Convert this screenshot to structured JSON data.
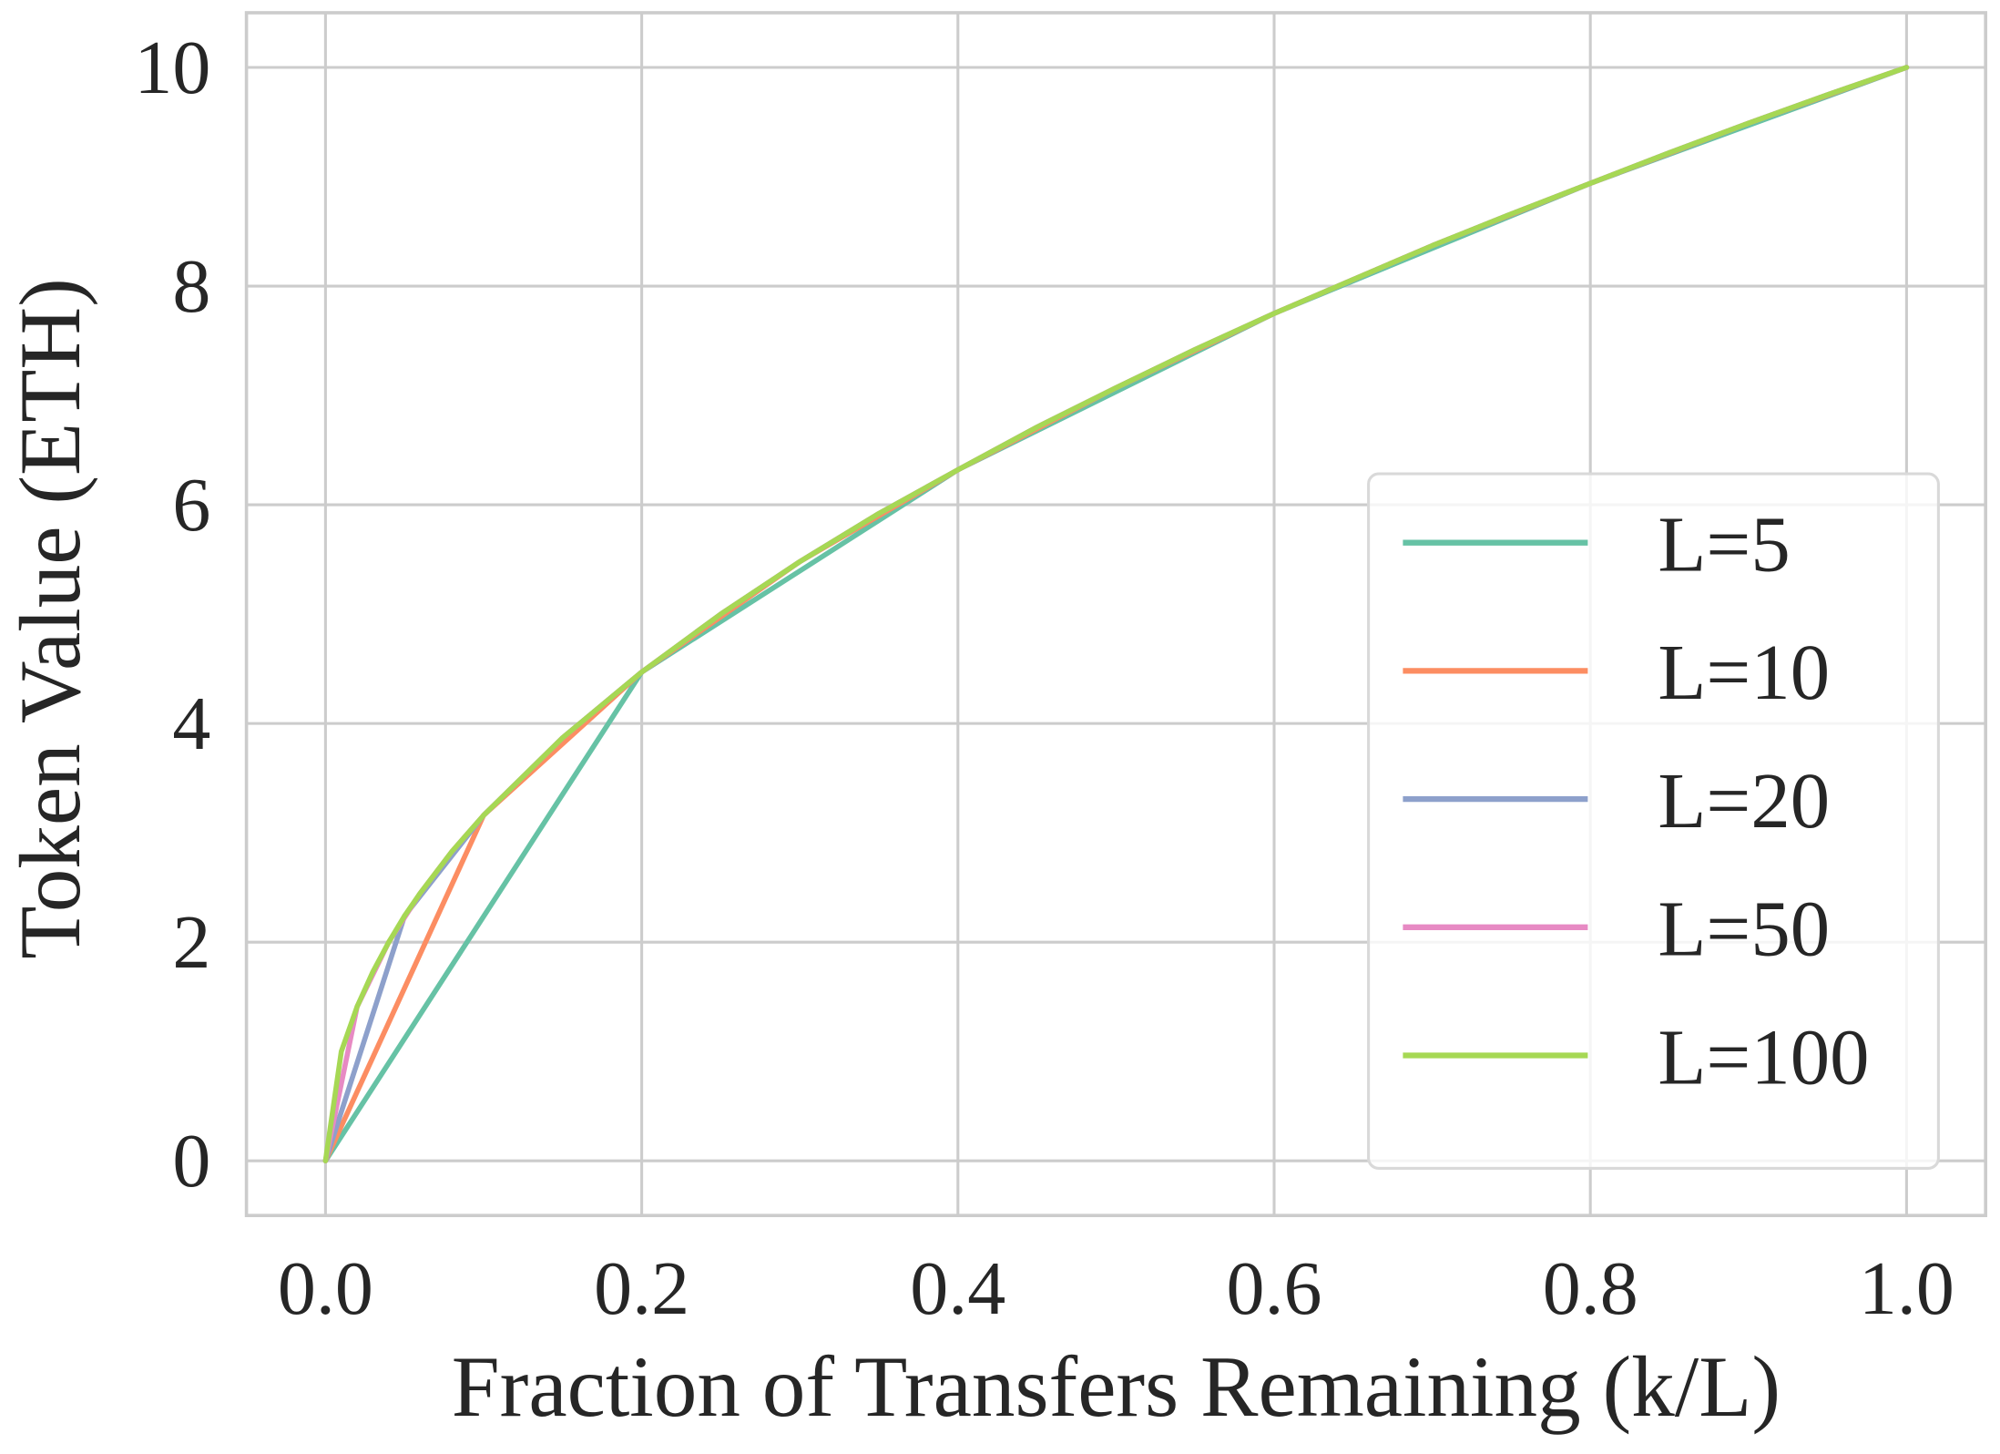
{
  "chart_data": {
    "type": "line",
    "x_label": "Fraction of Transfers Remaining (k/L)",
    "y_label": "Token Value (ETH)",
    "xlim": [
      -0.05,
      1.05
    ],
    "ylim": [
      -0.5,
      10.5
    ],
    "xticks": [
      {
        "value": 0,
        "label": "0.0"
      },
      0.2,
      0.4,
      0.6,
      0.8,
      {
        "value": 1,
        "label": "1.0"
      }
    ],
    "yticks": [
      0,
      2,
      4,
      6,
      8,
      10
    ],
    "grid": true,
    "legend": "lower right",
    "series": [
      {
        "name": "L=5",
        "color": "#66c2a5",
        "x": [
          0,
          0.2,
          0.4,
          0.6,
          0.8,
          1
        ],
        "values": [
          0,
          4.47,
          6.32,
          7.75,
          8.94,
          10
        ]
      },
      {
        "name": "L=10",
        "color": "#fc8d62",
        "x": [
          0,
          0.1,
          0.2,
          0.3,
          0.4,
          0.5,
          0.6,
          0.7,
          0.8,
          0.9,
          1
        ],
        "values": [
          0,
          3.16,
          4.47,
          5.48,
          6.32,
          7.07,
          7.75,
          8.37,
          8.94,
          9.49,
          10
        ]
      },
      {
        "name": "L=20",
        "color": "#8da0cb",
        "x": [
          0,
          0.05,
          0.1,
          0.15,
          0.2,
          0.25,
          0.3,
          0.35,
          0.4,
          0.45,
          0.5,
          0.55,
          0.6,
          0.65,
          0.7,
          0.75,
          0.8,
          0.85,
          0.9,
          0.95,
          1
        ],
        "values": [
          0,
          2.24,
          3.16,
          3.87,
          4.47,
          5,
          5.48,
          5.92,
          6.32,
          6.71,
          7.07,
          7.42,
          7.75,
          8.06,
          8.37,
          8.66,
          8.94,
          9.22,
          9.49,
          9.75,
          10
        ]
      },
      {
        "name": "L=50",
        "color": "#e78ac3",
        "x": [
          0,
          0.02,
          0.04,
          0.06,
          0.08,
          0.1,
          0.15,
          0.2,
          0.25,
          0.3,
          0.35,
          0.4,
          0.45,
          0.5,
          0.55,
          0.6,
          0.65,
          0.7,
          0.75,
          0.8,
          0.85,
          0.9,
          0.95,
          1
        ],
        "values": [
          0,
          1.41,
          2,
          2.45,
          2.83,
          3.16,
          3.87,
          4.47,
          5,
          5.48,
          5.92,
          6.32,
          6.71,
          7.07,
          7.42,
          7.75,
          8.06,
          8.37,
          8.66,
          8.94,
          9.22,
          9.49,
          9.75,
          10
        ]
      },
      {
        "name": "L=100",
        "color": "#a6d854",
        "x": [
          0,
          0.01,
          0.02,
          0.03,
          0.04,
          0.05,
          0.06,
          0.08,
          0.1,
          0.15,
          0.2,
          0.25,
          0.3,
          0.35,
          0.4,
          0.45,
          0.5,
          0.55,
          0.6,
          0.65,
          0.7,
          0.75,
          0.8,
          0.85,
          0.9,
          0.95,
          1
        ],
        "values": [
          0,
          1,
          1.41,
          1.73,
          2,
          2.24,
          2.45,
          2.83,
          3.16,
          3.87,
          4.47,
          5,
          5.48,
          5.92,
          6.32,
          6.71,
          7.07,
          7.42,
          7.75,
          8.06,
          8.37,
          8.66,
          8.94,
          9.22,
          9.49,
          9.75,
          10
        ]
      }
    ]
  }
}
